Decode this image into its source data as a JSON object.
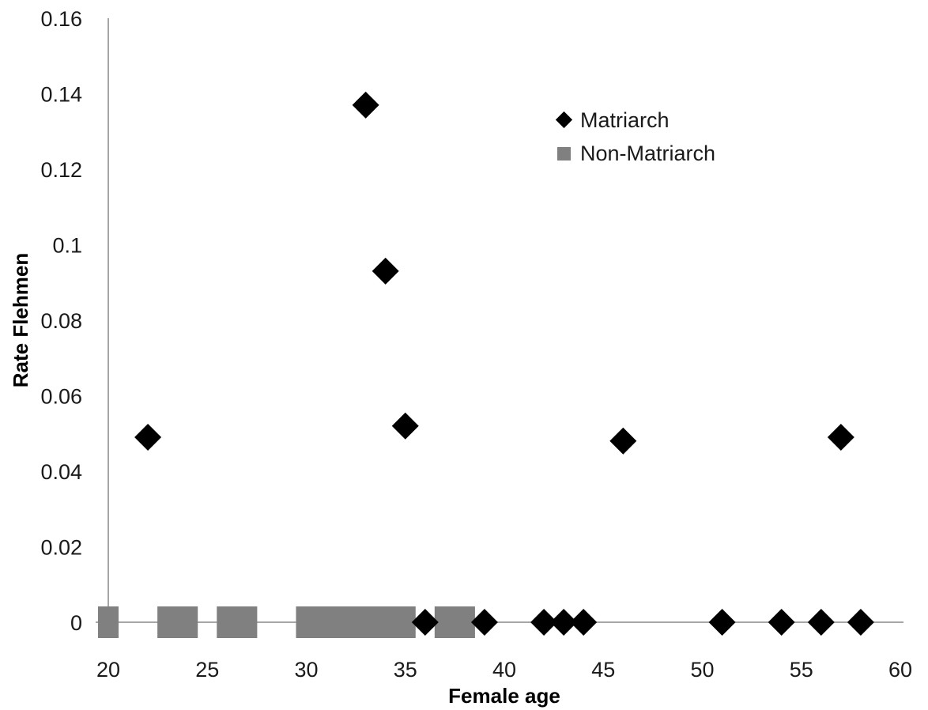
{
  "chart_data": {
    "type": "scatter",
    "title": "",
    "xlabel": "Female age",
    "ylabel": "Rate Flehmen",
    "xlim": [
      20,
      60
    ],
    "ylim": [
      0,
      0.16
    ],
    "x_ticks": [
      "20",
      "25",
      "30",
      "35",
      "40",
      "45",
      "50",
      "55",
      "60"
    ],
    "y_ticks": [
      "0",
      "0.02",
      "0.04",
      "0.06",
      "0.08",
      "0.1",
      "0.12",
      "0.14",
      "0.16"
    ],
    "grid": false,
    "legend_position": "top-right",
    "series": [
      {
        "name": "Matriarch",
        "marker": "diamond",
        "color": "#000000",
        "points": [
          [
            22,
            0.049
          ],
          [
            33,
            0.137
          ],
          [
            34,
            0.093
          ],
          [
            35,
            0.052
          ],
          [
            36,
            0
          ],
          [
            39,
            0
          ],
          [
            42,
            0
          ],
          [
            43,
            0
          ],
          [
            44,
            0
          ],
          [
            46,
            0.048
          ],
          [
            51,
            0
          ],
          [
            54,
            0
          ],
          [
            56,
            0
          ],
          [
            57,
            0.049
          ],
          [
            58,
            0
          ]
        ]
      },
      {
        "name": "Non-Matriarch",
        "marker": "square",
        "color": "#808080",
        "points": [
          [
            20,
            0
          ],
          [
            23,
            0
          ],
          [
            24,
            0
          ],
          [
            26,
            0
          ],
          [
            27,
            0
          ],
          [
            30,
            0
          ],
          [
            31,
            0
          ],
          [
            32,
            0
          ],
          [
            33,
            0
          ],
          [
            34,
            0
          ],
          [
            35,
            0
          ],
          [
            37,
            0
          ],
          [
            38,
            0
          ]
        ]
      }
    ]
  }
}
